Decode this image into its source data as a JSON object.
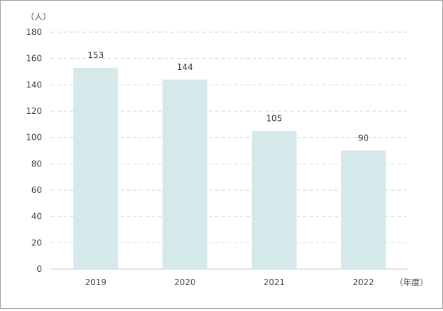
{
  "chart_data": {
    "type": "bar",
    "title": "",
    "y_unit_label": "（人）",
    "x_unit_label": "（年度）",
    "categories": [
      "2019",
      "2020",
      "2021",
      "2022"
    ],
    "values": [
      153,
      144,
      105,
      90
    ],
    "ylim": [
      0,
      180
    ],
    "yticks": [
      0,
      20,
      40,
      60,
      80,
      100,
      120,
      140,
      160,
      180
    ],
    "grid": true,
    "legend": "none",
    "bar_color": "#d5e8ea"
  }
}
